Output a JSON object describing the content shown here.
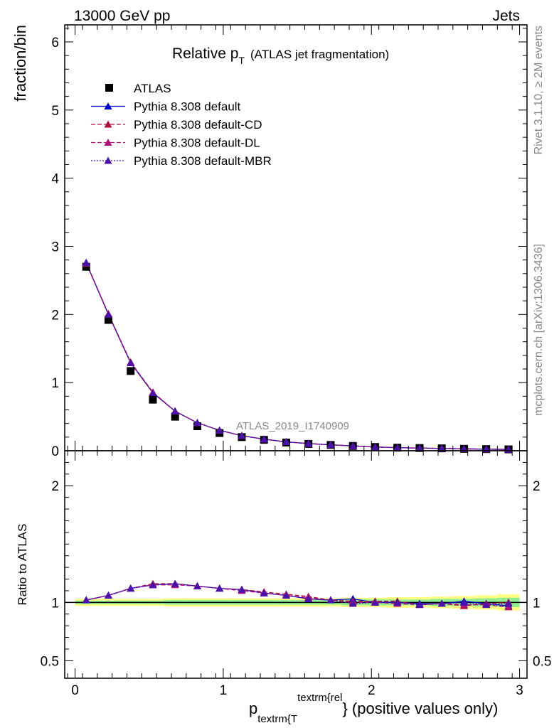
{
  "header": {
    "left": "13000 GeV pp",
    "right": "Jets"
  },
  "side_labels": {
    "top": "Rivet 3.1.10, ≥ 2M events",
    "bottom": "mcplots.cern.ch [arXiv:1306.3436]"
  },
  "watermark": "ATLAS_2019_I1740909",
  "chart_data": [
    {
      "type": "scatter",
      "title_main": "Relative p",
      "title_sub": "T",
      "title_rest": "(ATLAS jet fragmentation)",
      "ylabel": "fraction/bin",
      "ylim": [
        0,
        6.25
      ],
      "yticks": [
        "0",
        "1",
        "2",
        "3",
        "4",
        "5",
        "6"
      ],
      "xlim": [
        -0.07,
        3.05
      ],
      "x": [
        0.075,
        0.225,
        0.375,
        0.525,
        0.675,
        0.825,
        0.975,
        1.125,
        1.275,
        1.425,
        1.575,
        1.725,
        1.875,
        2.025,
        2.175,
        2.325,
        2.475,
        2.625,
        2.775,
        2.925
      ],
      "series": [
        {
          "name": "ATLAS",
          "marker": "square",
          "color": "#000000",
          "values": [
            2.7,
            1.92,
            1.17,
            0.75,
            0.5,
            0.36,
            0.26,
            0.2,
            0.16,
            0.12,
            0.1,
            0.085,
            0.07,
            0.055,
            0.045,
            0.04,
            0.035,
            0.028,
            0.024,
            0.02
          ]
        },
        {
          "name": "Pythia 8.308 default",
          "marker": "triangle",
          "color": "#0000cc",
          "dash": "",
          "values": [
            2.76,
            2.0,
            1.29,
            0.85,
            0.58,
            0.41,
            0.3,
            0.22,
            0.17,
            0.13,
            0.105,
            0.087,
            0.071,
            0.055,
            0.045,
            0.039,
            0.034,
            0.028,
            0.023,
            0.019
          ]
        },
        {
          "name": "Pythia 8.308 default-CD",
          "marker": "triangle",
          "color": "#b0103a",
          "dash": "6,3",
          "values": [
            2.76,
            2.01,
            1.3,
            0.86,
            0.58,
            0.41,
            0.3,
            0.22,
            0.17,
            0.13,
            0.106,
            0.087,
            0.071,
            0.056,
            0.046,
            0.039,
            0.034,
            0.027,
            0.024,
            0.019
          ]
        },
        {
          "name": "Pythia 8.308 default-DL",
          "marker": "triangle",
          "color": "#b0107a",
          "dash": "6,3",
          "values": [
            2.75,
            2.0,
            1.29,
            0.85,
            0.58,
            0.41,
            0.3,
            0.22,
            0.17,
            0.13,
            0.104,
            0.086,
            0.07,
            0.055,
            0.046,
            0.039,
            0.034,
            0.027,
            0.023,
            0.019
          ]
        },
        {
          "name": "Pythia 8.308 default-MBR",
          "marker": "triangle",
          "color": "#4a10b0",
          "dash": "2,2",
          "values": [
            2.76,
            2.0,
            1.29,
            0.85,
            0.58,
            0.41,
            0.3,
            0.22,
            0.17,
            0.13,
            0.105,
            0.087,
            0.07,
            0.055,
            0.045,
            0.039,
            0.034,
            0.028,
            0.023,
            0.019
          ]
        }
      ]
    },
    {
      "type": "line",
      "ylabel": "Ratio to ATLAS",
      "ylim": [
        0.35,
        2.3
      ],
      "yticks": [
        {
          "v": 0.5,
          "label": "0.5"
        },
        {
          "v": 1,
          "label": "1"
        },
        {
          "v": 2,
          "label": "2"
        }
      ],
      "xlim": [
        -0.07,
        3.05
      ],
      "xticks": [
        "0",
        "1",
        "2",
        "3"
      ],
      "xlabel_main": "p",
      "xlabel_sub": "textrm{T",
      "xlabel_sup": "textrm{rel",
      "xlabel_rest": "} (positive values only)",
      "x": [
        0.075,
        0.225,
        0.375,
        0.525,
        0.675,
        0.825,
        0.975,
        1.125,
        1.275,
        1.425,
        1.575,
        1.725,
        1.875,
        2.025,
        2.175,
        2.325,
        2.475,
        2.625,
        2.775,
        2.925
      ],
      "band_outer": [
        0.03,
        0.03,
        0.03,
        0.03,
        0.035,
        0.035,
        0.035,
        0.035,
        0.035,
        0.035,
        0.035,
        0.035,
        0.04,
        0.04,
        0.045,
        0.045,
        0.05,
        0.055,
        0.06,
        0.07
      ],
      "band_inner": [
        0.015,
        0.015,
        0.015,
        0.015,
        0.02,
        0.02,
        0.02,
        0.02,
        0.02,
        0.02,
        0.02,
        0.02,
        0.025,
        0.025,
        0.025,
        0.025,
        0.03,
        0.03,
        0.035,
        0.04
      ],
      "band_outer_color": "#ffff80",
      "band_inner_color": "#90ee90",
      "series": [
        {
          "name": "Pythia 8.308 default",
          "color": "#0000cc",
          "dash": "",
          "values": [
            1.02,
            1.06,
            1.12,
            1.15,
            1.16,
            1.14,
            1.12,
            1.11,
            1.08,
            1.06,
            1.03,
            1.02,
            1.03,
            1.0,
            1.0,
            0.99,
            0.99,
            1.01,
            0.99,
            0.97
          ]
        },
        {
          "name": "Pythia 8.308 default-CD",
          "color": "#b0103a",
          "dash": "6,3",
          "values": [
            1.02,
            1.06,
            1.12,
            1.16,
            1.16,
            1.14,
            1.12,
            1.11,
            1.09,
            1.07,
            1.05,
            1.02,
            1.01,
            1.01,
            1.01,
            0.98,
            0.99,
            0.97,
            0.99,
            1.0
          ]
        },
        {
          "name": "Pythia 8.308 default-DL",
          "color": "#b0107a",
          "dash": "6,3",
          "values": [
            1.02,
            1.06,
            1.12,
            1.15,
            1.15,
            1.14,
            1.12,
            1.1,
            1.08,
            1.06,
            1.04,
            1.02,
            1.0,
            1.0,
            0.99,
            0.98,
            0.99,
            0.98,
            0.98,
            0.96
          ]
        },
        {
          "name": "Pythia 8.308 default-MBR",
          "color": "#4a10b0",
          "dash": "2,2",
          "values": [
            1.02,
            1.06,
            1.12,
            1.15,
            1.16,
            1.14,
            1.12,
            1.11,
            1.08,
            1.06,
            1.03,
            1.02,
            0.99,
            1.0,
            1.0,
            0.98,
            0.99,
            1.0,
            0.98,
            0.99
          ]
        }
      ]
    }
  ]
}
